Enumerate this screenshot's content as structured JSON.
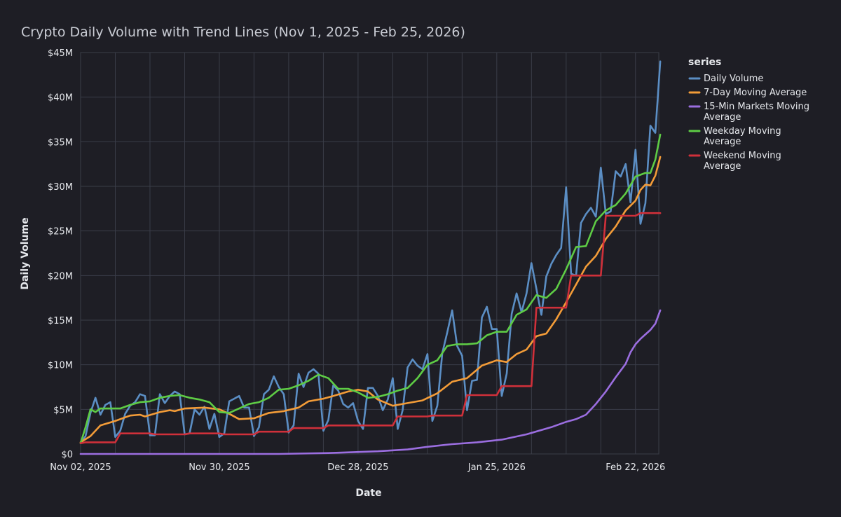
{
  "chart_data": {
    "type": "line",
    "title": "Crypto Daily Volume with Trend Lines (Nov 1, 2025 - Feb 25, 2026)",
    "xlabel": "Date",
    "ylabel": "Daily Volume",
    "ylim": [
      0,
      45
    ],
    "y_unit": "millions USD",
    "x_range_days": [
      0,
      115
    ],
    "x_ticks": [
      {
        "day": 0,
        "label": "Nov 02, 2025"
      },
      {
        "day": 28,
        "label": "Nov 30, 2025"
      },
      {
        "day": 56,
        "label": "Dec 28, 2025"
      },
      {
        "day": 84,
        "label": "Jan 25, 2026"
      },
      {
        "day": 112,
        "label": "Feb 22, 2026"
      }
    ],
    "y_ticks": [
      {
        "value": 0,
        "label": "$0"
      },
      {
        "value": 5,
        "label": "$5M"
      },
      {
        "value": 10,
        "label": "$10M"
      },
      {
        "value": 15,
        "label": "$15M"
      },
      {
        "value": 20,
        "label": "$20M"
      },
      {
        "value": 25,
        "label": "$25M"
      },
      {
        "value": 30,
        "label": "$30M"
      },
      {
        "value": 35,
        "label": "$35M"
      },
      {
        "value": 40,
        "label": "$40M"
      },
      {
        "value": 45,
        "label": "$45M"
      }
    ],
    "grid": true,
    "legend": {
      "title": "series",
      "position": "right"
    },
    "series": [
      {
        "name": "Daily Volume",
        "label_lines": [
          "Daily Volume"
        ],
        "color": "#5b8ec4",
        "points": [
          [
            0,
            1.2
          ],
          [
            1,
            2
          ],
          [
            2,
            4.6
          ],
          [
            3,
            6.3
          ],
          [
            4,
            4.4
          ],
          [
            5,
            5.5
          ],
          [
            6,
            5.8
          ],
          [
            7,
            1.9
          ],
          [
            8,
            2.6
          ],
          [
            9,
            4.5
          ],
          [
            10,
            5.4
          ],
          [
            11,
            5.8
          ],
          [
            12,
            6.7
          ],
          [
            13,
            6.5
          ],
          [
            14,
            2.1
          ],
          [
            15,
            2.1
          ],
          [
            16,
            6.7
          ],
          [
            17,
            5.7
          ],
          [
            18,
            6.5
          ],
          [
            19,
            7
          ],
          [
            20,
            6.7
          ],
          [
            21,
            2.2
          ],
          [
            22,
            2.3
          ],
          [
            23,
            5
          ],
          [
            24,
            4.4
          ],
          [
            25,
            5.3
          ],
          [
            26,
            2.8
          ],
          [
            27,
            4.5
          ],
          [
            28,
            1.9
          ],
          [
            29,
            2.3
          ],
          [
            30,
            5.9
          ],
          [
            31,
            6.2
          ],
          [
            32,
            6.5
          ],
          [
            33,
            5.2
          ],
          [
            34,
            5.2
          ],
          [
            35,
            2
          ],
          [
            36,
            3
          ],
          [
            37,
            6.7
          ],
          [
            38,
            7.2
          ],
          [
            39,
            8.7
          ],
          [
            40,
            7.5
          ],
          [
            41,
            6.7
          ],
          [
            42,
            2.4
          ],
          [
            43,
            3.2
          ],
          [
            44,
            9
          ],
          [
            45,
            7.5
          ],
          [
            46,
            9.1
          ],
          [
            47,
            9.5
          ],
          [
            48,
            9
          ],
          [
            49,
            2.6
          ],
          [
            50,
            3.8
          ],
          [
            51,
            7.7
          ],
          [
            52,
            7.1
          ],
          [
            53,
            5.6
          ],
          [
            54,
            5.2
          ],
          [
            55,
            5.7
          ],
          [
            56,
            3.7
          ],
          [
            57,
            2.8
          ],
          [
            58,
            7.4
          ],
          [
            59,
            7.4
          ],
          [
            60,
            6.5
          ],
          [
            61,
            4.9
          ],
          [
            62,
            6.1
          ],
          [
            63,
            8.5
          ],
          [
            64,
            2.8
          ],
          [
            65,
            4.9
          ],
          [
            66,
            9.7
          ],
          [
            67,
            10.6
          ],
          [
            68,
            9.9
          ],
          [
            69,
            9.5
          ],
          [
            70,
            11.2
          ],
          [
            71,
            3.7
          ],
          [
            72,
            5.4
          ],
          [
            73,
            11.3
          ],
          [
            74,
            13.6
          ],
          [
            75,
            16.1
          ],
          [
            76,
            12.1
          ],
          [
            77,
            11
          ],
          [
            78,
            4.9
          ],
          [
            79,
            8.2
          ],
          [
            80,
            8.3
          ],
          [
            81,
            15.3
          ],
          [
            82,
            16.5
          ],
          [
            83,
            14
          ],
          [
            84,
            14
          ],
          [
            85,
            6.5
          ],
          [
            86,
            9
          ],
          [
            87,
            15.7
          ],
          [
            88,
            18
          ],
          [
            89,
            15.9
          ],
          [
            90,
            18
          ],
          [
            91,
            21.4
          ],
          [
            92,
            18.5
          ],
          [
            93,
            15.6
          ],
          [
            94,
            19.9
          ],
          [
            95,
            21.3
          ],
          [
            96,
            22.3
          ],
          [
            97,
            23.1
          ],
          [
            98,
            29.9
          ],
          [
            99,
            20.2
          ],
          [
            100,
            20
          ],
          [
            101,
            25.9
          ],
          [
            102,
            26.9
          ],
          [
            103,
            27.6
          ],
          [
            104,
            26.6
          ],
          [
            105,
            32.1
          ],
          [
            106,
            26.9
          ],
          [
            107,
            27.2
          ],
          [
            108,
            31.7
          ],
          [
            109,
            31.1
          ],
          [
            110,
            32.5
          ],
          [
            111,
            28.2
          ],
          [
            112,
            34.1
          ],
          [
            113,
            25.8
          ],
          [
            114,
            28.1
          ],
          [
            115,
            36.8
          ],
          [
            116,
            36
          ],
          [
            117,
            44
          ]
        ]
      },
      {
        "name": "7-Day Moving Average",
        "label_lines": [
          "7-Day Moving Average"
        ],
        "color": "#f39c38",
        "points": [
          [
            0,
            1.3
          ],
          [
            2,
            2
          ],
          [
            4,
            3.2
          ],
          [
            7,
            3.7
          ],
          [
            10,
            4.3
          ],
          [
            12,
            4.4
          ],
          [
            13,
            4.2
          ],
          [
            16,
            4.7
          ],
          [
            18,
            4.9
          ],
          [
            19,
            4.8
          ],
          [
            21,
            5.1
          ],
          [
            25,
            5.2
          ],
          [
            28,
            5
          ],
          [
            30,
            4.5
          ],
          [
            32,
            3.9
          ],
          [
            35,
            4
          ],
          [
            38,
            4.6
          ],
          [
            41,
            4.8
          ],
          [
            44,
            5.2
          ],
          [
            46,
            5.9
          ],
          [
            49,
            6.2
          ],
          [
            51,
            6.5
          ],
          [
            54,
            7
          ],
          [
            56,
            7.2
          ],
          [
            58,
            7
          ],
          [
            60,
            6.1
          ],
          [
            63,
            5.4
          ],
          [
            66,
            5.7
          ],
          [
            69,
            6
          ],
          [
            72,
            6.8
          ],
          [
            75,
            8.1
          ],
          [
            78,
            8.5
          ],
          [
            81,
            9.9
          ],
          [
            84,
            10.5
          ],
          [
            86,
            10.3
          ],
          [
            88,
            11.2
          ],
          [
            90,
            11.7
          ],
          [
            92,
            13.2
          ],
          [
            94,
            13.5
          ],
          [
            96,
            15.1
          ],
          [
            98,
            17
          ],
          [
            100,
            19
          ],
          [
            102,
            21
          ],
          [
            104,
            22.2
          ],
          [
            106,
            24.1
          ],
          [
            108,
            25.5
          ],
          [
            110,
            27.3
          ],
          [
            112,
            28.4
          ],
          [
            113,
            29.6
          ],
          [
            114,
            30.2
          ],
          [
            115,
            30.1
          ],
          [
            116,
            31.2
          ],
          [
            117,
            33.3
          ]
        ]
      },
      {
        "name": "15-Min Markets Moving Average",
        "label_lines": [
          "15-Min Markets Moving",
          "Average"
        ],
        "color": "#9b6ee0",
        "points": [
          [
            0,
            0
          ],
          [
            40,
            0
          ],
          [
            50,
            0.1
          ],
          [
            60,
            0.3
          ],
          [
            66,
            0.5
          ],
          [
            70,
            0.8
          ],
          [
            75,
            1.1
          ],
          [
            80,
            1.3
          ],
          [
            85,
            1.6
          ],
          [
            90,
            2.2
          ],
          [
            95,
            3
          ],
          [
            98,
            3.6
          ],
          [
            100,
            3.9
          ],
          [
            102,
            4.4
          ],
          [
            104,
            5.6
          ],
          [
            106,
            7
          ],
          [
            108,
            8.6
          ],
          [
            110,
            10.1
          ],
          [
            111,
            11.4
          ],
          [
            112,
            12.3
          ],
          [
            113,
            12.9
          ],
          [
            114,
            13.4
          ],
          [
            115,
            13.9
          ],
          [
            116,
            14.6
          ],
          [
            117,
            16.1
          ]
        ]
      },
      {
        "name": "Weekday Moving Average",
        "label_lines": [
          "Weekday Moving",
          "Average"
        ],
        "color": "#5ecc45",
        "points": [
          [
            0,
            1.2
          ],
          [
            1,
            3
          ],
          [
            2,
            5
          ],
          [
            3,
            4.7
          ],
          [
            4,
            5.1
          ],
          [
            8,
            5.1
          ],
          [
            10,
            5.5
          ],
          [
            12,
            5.8
          ],
          [
            14,
            5.9
          ],
          [
            16,
            6.3
          ],
          [
            18,
            6.5
          ],
          [
            20,
            6.6
          ],
          [
            22,
            6.3
          ],
          [
            24,
            6.1
          ],
          [
            26,
            5.8
          ],
          [
            28,
            4.7
          ],
          [
            30,
            4.6
          ],
          [
            32,
            5.1
          ],
          [
            34,
            5.6
          ],
          [
            36,
            5.8
          ],
          [
            38,
            6.3
          ],
          [
            40,
            7.2
          ],
          [
            42,
            7.3
          ],
          [
            44,
            7.7
          ],
          [
            46,
            8.2
          ],
          [
            48,
            8.9
          ],
          [
            50,
            8.5
          ],
          [
            52,
            7.3
          ],
          [
            54,
            7.3
          ],
          [
            56,
            6.9
          ],
          [
            58,
            6.3
          ],
          [
            60,
            6.4
          ],
          [
            62,
            6.7
          ],
          [
            64,
            7.1
          ],
          [
            66,
            7.4
          ],
          [
            68,
            8.5
          ],
          [
            70,
            10
          ],
          [
            72,
            10.5
          ],
          [
            74,
            12.1
          ],
          [
            76,
            12.3
          ],
          [
            78,
            12.3
          ],
          [
            80,
            12.4
          ],
          [
            82,
            13.3
          ],
          [
            84,
            13.7
          ],
          [
            86,
            13.7
          ],
          [
            88,
            15.6
          ],
          [
            90,
            16.2
          ],
          [
            92,
            17.8
          ],
          [
            94,
            17.5
          ],
          [
            96,
            18.5
          ],
          [
            98,
            20.7
          ],
          [
            100,
            23.2
          ],
          [
            102,
            23.3
          ],
          [
            104,
            26.1
          ],
          [
            106,
            27.3
          ],
          [
            108,
            27.9
          ],
          [
            110,
            29.2
          ],
          [
            112,
            31.1
          ],
          [
            114,
            31.5
          ],
          [
            115,
            31.5
          ],
          [
            116,
            33
          ],
          [
            117,
            35.8
          ]
        ]
      },
      {
        "name": "Weekend Moving Average",
        "label_lines": [
          "Weekend Moving",
          "Average"
        ],
        "color": "#d0303a",
        "points": [
          [
            0,
            1.2
          ],
          [
            1,
            1.3
          ],
          [
            6,
            1.3
          ],
          [
            7,
            1.3
          ],
          [
            8,
            2.3
          ],
          [
            13,
            2.3
          ],
          [
            14,
            2.3
          ],
          [
            15,
            2.2
          ],
          [
            21,
            2.2
          ],
          [
            22,
            2.3
          ],
          [
            28,
            2.3
          ],
          [
            29,
            2.2
          ],
          [
            35,
            2.2
          ],
          [
            36,
            2.5
          ],
          [
            42,
            2.5
          ],
          [
            43,
            2.9
          ],
          [
            49,
            2.9
          ],
          [
            50,
            3.2
          ],
          [
            56,
            3.2
          ],
          [
            57,
            3.2
          ],
          [
            63,
            3.2
          ],
          [
            64,
            4.2
          ],
          [
            70,
            4.2
          ],
          [
            71,
            4.3
          ],
          [
            77,
            4.3
          ],
          [
            78,
            6.6
          ],
          [
            84,
            6.6
          ],
          [
            85,
            7.6
          ],
          [
            91,
            7.6
          ],
          [
            92,
            16.4
          ],
          [
            93,
            16.4
          ],
          [
            98,
            16.4
          ],
          [
            99,
            20
          ],
          [
            105,
            20
          ],
          [
            106,
            26.7
          ],
          [
            112,
            26.7
          ],
          [
            113,
            27
          ],
          [
            117,
            27
          ]
        ]
      }
    ]
  }
}
